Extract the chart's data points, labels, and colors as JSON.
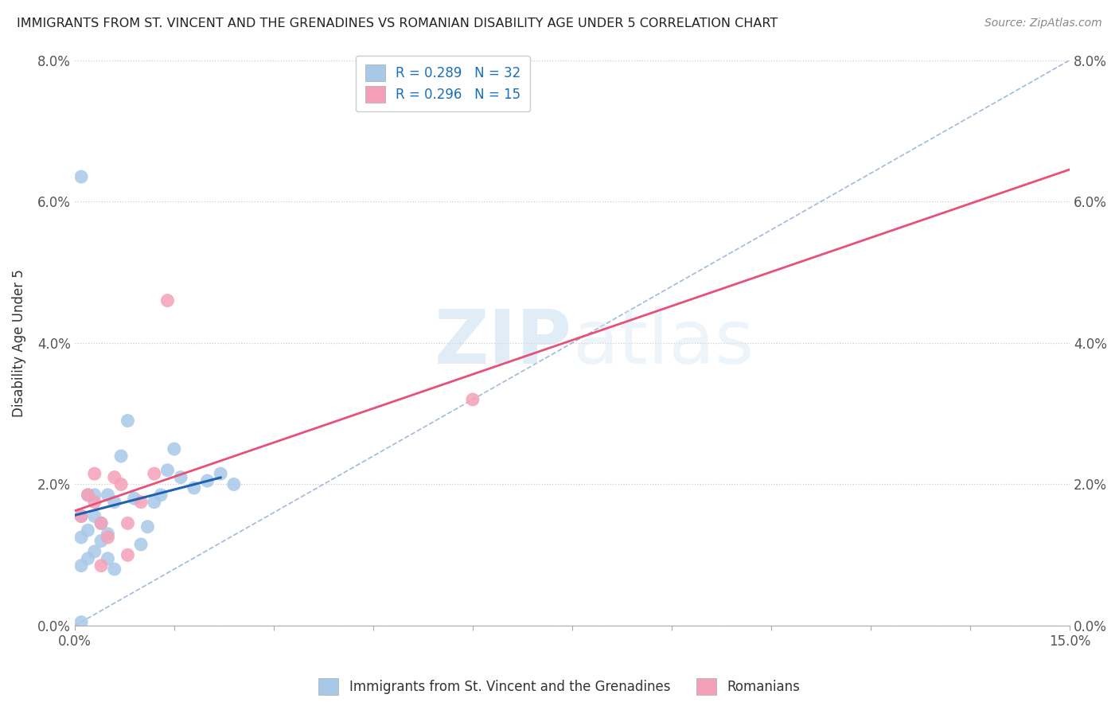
{
  "title": "IMMIGRANTS FROM ST. VINCENT AND THE GRENADINES VS ROMANIAN DISABILITY AGE UNDER 5 CORRELATION CHART",
  "source": "Source: ZipAtlas.com",
  "ylabel": "Disability Age Under 5",
  "xlim": [
    0.0,
    0.15
  ],
  "ylim": [
    0.0,
    0.08
  ],
  "xticks": [
    0.0,
    0.015,
    0.03,
    0.045,
    0.06,
    0.075,
    0.09,
    0.105,
    0.12,
    0.135,
    0.15
  ],
  "yticks": [
    0.0,
    0.02,
    0.04,
    0.06,
    0.08
  ],
  "xtick_labels_shown": {
    "0.0": "0.0%",
    "0.15": "15.0%"
  },
  "ytick_labels": [
    "0.0%",
    "2.0%",
    "4.0%",
    "6.0%",
    "8.0%"
  ],
  "blue_color": "#a8c8e8",
  "pink_color": "#f4a0b8",
  "blue_line_color": "#2060b0",
  "pink_line_color": "#e8507a",
  "diag_color": "#a0b8d8",
  "blue_R": 0.289,
  "blue_N": 32,
  "pink_R": 0.296,
  "pink_N": 15,
  "legend_label_blue": "Immigrants from St. Vincent and the Grenadines",
  "legend_label_pink": "Romanians",
  "watermark_zip": "ZIP",
  "watermark_atlas": "atlas",
  "blue_points_x": [
    0.001,
    0.001,
    0.001,
    0.002,
    0.002,
    0.002,
    0.003,
    0.003,
    0.003,
    0.004,
    0.004,
    0.005,
    0.005,
    0.005,
    0.006,
    0.006,
    0.007,
    0.008,
    0.009,
    0.01,
    0.011,
    0.012,
    0.013,
    0.014,
    0.015,
    0.016,
    0.018,
    0.02,
    0.022,
    0.024,
    0.001,
    0.001
  ],
  "blue_points_y": [
    0.0085,
    0.0125,
    0.0155,
    0.0095,
    0.0135,
    0.0185,
    0.0105,
    0.0155,
    0.0185,
    0.012,
    0.0145,
    0.0095,
    0.013,
    0.0185,
    0.008,
    0.0175,
    0.024,
    0.029,
    0.018,
    0.0115,
    0.014,
    0.0175,
    0.0185,
    0.022,
    0.025,
    0.021,
    0.0195,
    0.0205,
    0.0215,
    0.02,
    0.0635,
    0.0005
  ],
  "pink_points_x": [
    0.001,
    0.002,
    0.003,
    0.003,
    0.004,
    0.005,
    0.006,
    0.007,
    0.008,
    0.01,
    0.012,
    0.014,
    0.06,
    0.008,
    0.004
  ],
  "pink_points_y": [
    0.0155,
    0.0185,
    0.0175,
    0.0215,
    0.0145,
    0.0125,
    0.021,
    0.02,
    0.0145,
    0.0175,
    0.0215,
    0.046,
    0.032,
    0.01,
    0.0085
  ]
}
